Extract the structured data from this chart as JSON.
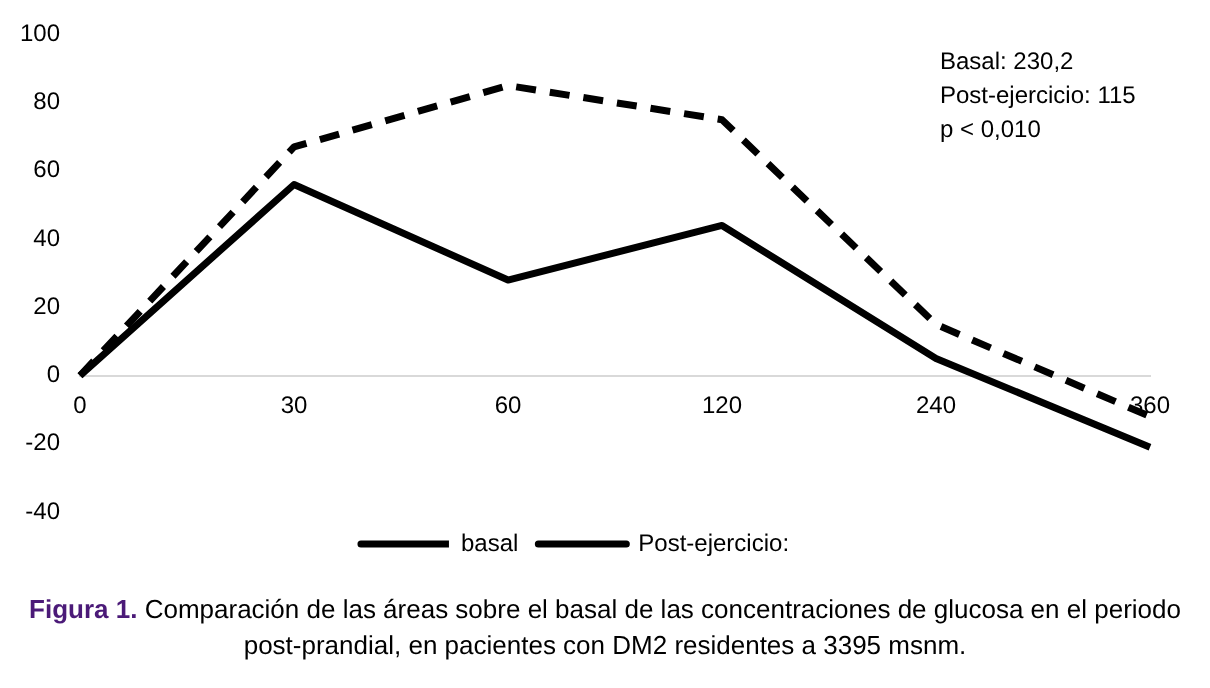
{
  "chart_data": {
    "type": "line",
    "categories": [
      "0",
      "30",
      "60",
      "120",
      "240",
      "360"
    ],
    "series": [
      {
        "name": "basal",
        "color": "#000000",
        "line_style": "dashed",
        "values": [
          0,
          67,
          85,
          75,
          15,
          -12
        ]
      },
      {
        "name": "Post-ejercicio:",
        "color": "#000000",
        "line_style": "solid",
        "values": [
          0,
          56,
          28,
          44,
          5,
          -21
        ]
      }
    ],
    "ylim": [
      -40,
      100
    ],
    "yticks": [
      -40,
      -20,
      0,
      20,
      40,
      60,
      80,
      100
    ],
    "grid": false,
    "legend": "bottom",
    "marker": "none",
    "annotations": [
      "Basal: 230,2",
      "Post-ejercicio: 115",
      "p < 0,010",
      "Figura 1.",
      "Comparación de las áreas sobre el basal de las concentraciones de glucosa en el periodo post-prandial, en pacientes con DM2 residentes a 3395 msnm."
    ]
  }
}
